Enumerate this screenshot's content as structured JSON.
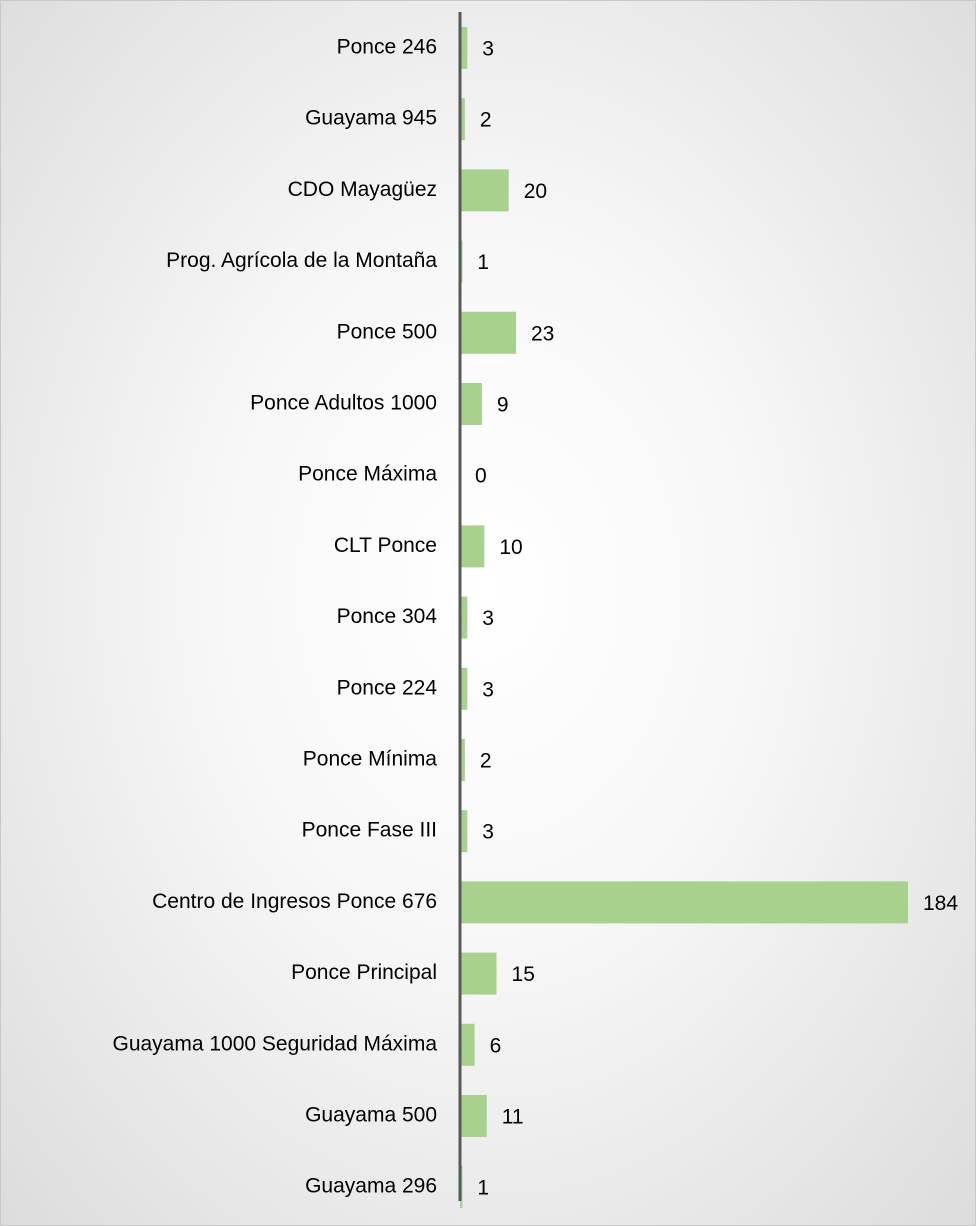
{
  "chart_data": {
    "type": "barh",
    "categories": [
      "Ponce 246",
      "Guayama 945",
      "CDO Mayagüez",
      "Prog. Agrícola de la Montaña",
      "Ponce 500",
      "Ponce Adultos 1000",
      "Ponce Máxima",
      "CLT Ponce",
      "Ponce 304",
      "Ponce 224",
      "Ponce Mínima",
      "Ponce Fase III",
      "Centro de Ingresos Ponce 676",
      "Ponce Principal",
      "Guayama 1000 Seguridad Máxima",
      "Guayama 500",
      "Guayama 296"
    ],
    "values": [
      3,
      2,
      20,
      1,
      23,
      9,
      0,
      10,
      3,
      3,
      2,
      3,
      184,
      15,
      6,
      11,
      1
    ],
    "color": "#a9d18e"
  }
}
